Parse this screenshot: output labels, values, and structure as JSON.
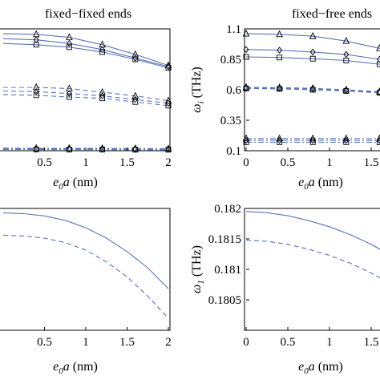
{
  "colors": {
    "line": "#5b73b8",
    "axis": "#000000"
  },
  "chart_data": [
    {
      "id": "tl",
      "type": "line",
      "title": "fixed−fixed ends",
      "xlabel": "e0a (nm)",
      "ylabel": "",
      "xlim": [
        0,
        2
      ],
      "ylim": [
        0.1,
        1.1
      ],
      "xticks": [
        0.5,
        1,
        1.5,
        2
      ],
      "xtick_labels": [
        "0.5",
        "1",
        "1.5",
        "2"
      ],
      "series": [
        {
          "style": "solid",
          "marker": "triangle",
          "x": [
            0,
            0.4,
            0.8,
            1.2,
            1.6,
            2
          ],
          "values": [
            1.06,
            1.055,
            1.03,
            0.97,
            0.89,
            0.8
          ]
        },
        {
          "style": "solid",
          "marker": "diamond",
          "x": [
            0,
            0.4,
            0.8,
            1.2,
            1.6,
            2
          ],
          "values": [
            1.02,
            1.01,
            0.98,
            0.93,
            0.86,
            0.79
          ]
        },
        {
          "style": "solid",
          "marker": "square",
          "x": [
            0,
            0.4,
            0.8,
            1.2,
            1.6,
            2
          ],
          "values": [
            0.98,
            0.97,
            0.95,
            0.91,
            0.85,
            0.78
          ]
        },
        {
          "style": "dashed",
          "marker": "triangle",
          "x": [
            0,
            0.4,
            0.8,
            1.2,
            1.6,
            2
          ],
          "values": [
            0.62,
            0.62,
            0.61,
            0.58,
            0.55,
            0.51
          ]
        },
        {
          "style": "dashed",
          "marker": "diamond",
          "x": [
            0,
            0.4,
            0.8,
            1.2,
            1.6,
            2
          ],
          "values": [
            0.59,
            0.585,
            0.57,
            0.55,
            0.52,
            0.49
          ]
        },
        {
          "style": "dashed",
          "marker": "square",
          "x": [
            0,
            0.4,
            0.8,
            1.2,
            1.6,
            2
          ],
          "values": [
            0.56,
            0.555,
            0.54,
            0.53,
            0.5,
            0.47
          ]
        },
        {
          "style": "dashdot",
          "marker": "triangle",
          "x": [
            0,
            0.4,
            0.8,
            1.2,
            1.6,
            2
          ],
          "values": [
            0.121,
            0.12,
            0.12,
            0.119,
            0.118,
            0.117
          ]
        },
        {
          "style": "dashdot",
          "marker": "diamond",
          "x": [
            0,
            0.4,
            0.8,
            1.2,
            1.6,
            2
          ],
          "values": [
            0.115,
            0.114,
            0.114,
            0.113,
            0.113,
            0.112
          ]
        },
        {
          "style": "dashdot",
          "marker": "square",
          "x": [
            0,
            0.4,
            0.8,
            1.2,
            1.6,
            2
          ],
          "values": [
            0.11,
            0.11,
            0.109,
            0.109,
            0.108,
            0.108
          ]
        }
      ]
    },
    {
      "id": "tr",
      "type": "line",
      "title": "fixed−free ends",
      "xlabel": "e0a (nm)",
      "ylabel": "ωi (THz)",
      "xlim": [
        0,
        2
      ],
      "ylim": [
        0.1,
        1.1
      ],
      "yticks": [
        0.1,
        0.35,
        0.6,
        0.85,
        1.1
      ],
      "ytick_labels": [
        "0.1",
        "0.35",
        "0.6",
        "0.85",
        "1.1"
      ],
      "xticks": [
        0,
        0.5,
        1,
        1.5
      ],
      "xtick_labels": [
        "0",
        "0.5",
        "1",
        "1.5"
      ],
      "series": [
        {
          "style": "solid",
          "marker": "triangle",
          "x": [
            0,
            0.4,
            0.8,
            1.2,
            1.6,
            2
          ],
          "values": [
            1.06,
            1.055,
            1.04,
            1.0,
            0.94,
            0.87
          ]
        },
        {
          "style": "solid",
          "marker": "diamond",
          "x": [
            0,
            0.4,
            0.8,
            1.2,
            1.6,
            2
          ],
          "values": [
            0.93,
            0.925,
            0.91,
            0.89,
            0.85,
            0.8
          ]
        },
        {
          "style": "solid",
          "marker": "square",
          "x": [
            0,
            0.4,
            0.8,
            1.2,
            1.6,
            2
          ],
          "values": [
            0.87,
            0.865,
            0.855,
            0.84,
            0.81,
            0.77
          ]
        },
        {
          "style": "dashed",
          "marker": "triangle",
          "x": [
            0,
            0.4,
            0.8,
            1.2,
            1.6,
            2
          ],
          "values": [
            0.62,
            0.618,
            0.612,
            0.6,
            0.585,
            0.57
          ]
        },
        {
          "style": "dashed",
          "marker": "diamond",
          "x": [
            0,
            0.4,
            0.8,
            1.2,
            1.6,
            2
          ],
          "values": [
            0.615,
            0.612,
            0.606,
            0.595,
            0.58,
            0.565
          ]
        },
        {
          "style": "dashed",
          "marker": "square",
          "x": [
            0,
            0.4,
            0.8,
            1.2,
            1.6,
            2
          ],
          "values": [
            0.61,
            0.607,
            0.6,
            0.59,
            0.575,
            0.56
          ]
        },
        {
          "style": "dashdot",
          "marker": "triangle",
          "x": [
            0,
            0.4,
            0.8,
            1.2,
            1.6,
            2
          ],
          "values": [
            0.2,
            0.2,
            0.2,
            0.2,
            0.199,
            0.198
          ]
        },
        {
          "style": "dashdot",
          "marker": "diamond",
          "x": [
            0,
            0.4,
            0.8,
            1.2,
            1.6,
            2
          ],
          "values": [
            0.185,
            0.185,
            0.185,
            0.185,
            0.184,
            0.184
          ]
        },
        {
          "style": "dashdot",
          "marker": "square",
          "x": [
            0,
            0.4,
            0.8,
            1.2,
            1.6,
            2
          ],
          "values": [
            0.17,
            0.17,
            0.17,
            0.17,
            0.169,
            0.169
          ]
        }
      ]
    },
    {
      "id": "bl",
      "type": "line",
      "title": "",
      "xlabel": "e0a (nm)",
      "ylabel": "",
      "xlim": [
        0,
        2
      ],
      "ylim": [
        0.18,
        1.0
      ],
      "xticks": [
        0.5,
        1,
        1.5,
        2
      ],
      "xtick_labels": [
        "0.5",
        "1",
        "1.5",
        "2"
      ],
      "series": [
        {
          "style": "solid",
          "marker": "none",
          "x": [
            0,
            0.25,
            0.5,
            0.75,
            1,
            1.25,
            1.5,
            1.75,
            2
          ],
          "values": [
            0.97,
            0.965,
            0.95,
            0.92,
            0.87,
            0.8,
            0.71,
            0.6,
            0.46
          ]
        },
        {
          "style": "dashed",
          "marker": "none",
          "x": [
            0,
            0.25,
            0.5,
            0.75,
            1,
            1.25,
            1.5,
            1.75,
            2
          ],
          "values": [
            0.82,
            0.815,
            0.8,
            0.77,
            0.72,
            0.64,
            0.54,
            0.41,
            0.26
          ]
        }
      ]
    },
    {
      "id": "br",
      "type": "line",
      "title": "",
      "xlabel": "e0a (nm)",
      "ylabel": "ω1 (THz)",
      "xlim": [
        0,
        2
      ],
      "ylim": [
        0.18,
        0.182
      ],
      "yticks": [
        0.1805,
        0.181,
        0.1815,
        0.182
      ],
      "ytick_labels": [
        "0.1805",
        "0.181",
        "0.1815",
        "0.182"
      ],
      "xticks": [
        0,
        0.5,
        1,
        1.5
      ],
      "xtick_labels": [
        "0",
        "0.5",
        "1",
        "1.5"
      ],
      "series": [
        {
          "style": "solid",
          "marker": "none",
          "x": [
            0,
            0.25,
            0.5,
            0.75,
            1,
            1.25,
            1.5,
            1.75,
            2
          ],
          "values": [
            0.18195,
            0.18193,
            0.18188,
            0.1818,
            0.1817,
            0.18157,
            0.18141,
            0.18122,
            0.181
          ]
        },
        {
          "style": "dashed",
          "marker": "none",
          "x": [
            0,
            0.25,
            0.5,
            0.75,
            1,
            1.25,
            1.5,
            1.75,
            2
          ],
          "values": [
            0.18148,
            0.18146,
            0.18141,
            0.18133,
            0.18123,
            0.1811,
            0.18094,
            0.18075,
            0.18053
          ]
        }
      ]
    }
  ]
}
